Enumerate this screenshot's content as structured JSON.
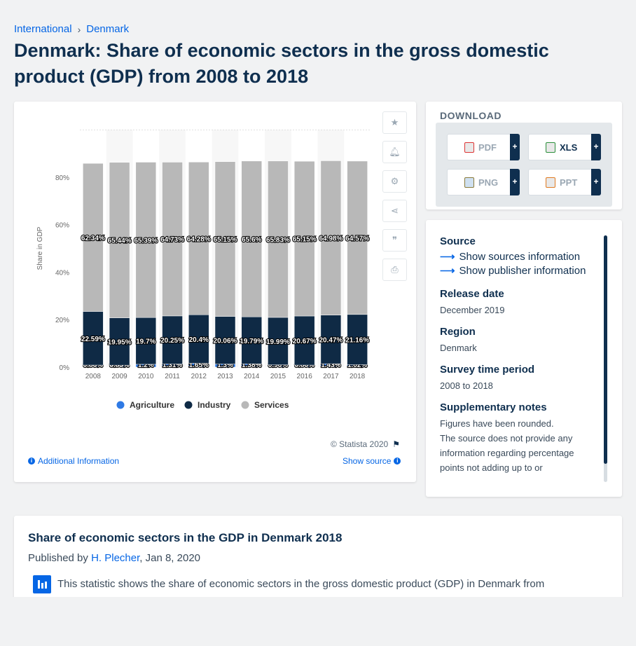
{
  "breadcrumb": {
    "item1": "International",
    "item2": "Denmark"
  },
  "title": "Denmark: Share of economic sectors in the gross domestic product (GDP) from 2008 to 2018",
  "chart_data": {
    "type": "bar",
    "stacked": true,
    "categories": [
      "2008",
      "2009",
      "2010",
      "2011",
      "2012",
      "2013",
      "2014",
      "2015",
      "2016",
      "2017",
      "2018"
    ],
    "series": [
      {
        "name": "Agriculture",
        "values": [
          0.86,
          0.83,
          1.2,
          1.31,
          1.65,
          1.3,
          1.38,
          0.96,
          0.86,
          1.43,
          1.02
        ],
        "labels": [
          "0.86%",
          "0.83%",
          "1.2%",
          "1.31%",
          "1.65%",
          "1.3%",
          "1.38%",
          "0.96%",
          "0.86%",
          "1.43%",
          "1.02%"
        ],
        "color": "#2f7ae5"
      },
      {
        "name": "Industry",
        "values": [
          22.59,
          19.95,
          19.7,
          20.25,
          20.4,
          20.06,
          19.79,
          19.99,
          20.67,
          20.47,
          21.16
        ],
        "labels": [
          "22.59%",
          "19.95%",
          "19.7%",
          "20.25%",
          "20.4%",
          "20.06%",
          "19.79%",
          "19.99%",
          "20.67%",
          "20.47%",
          "21.16%"
        ],
        "color": "#0f2a45"
      },
      {
        "name": "Services",
        "values": [
          62.34,
          65.44,
          65.39,
          64.73,
          64.28,
          65.15,
          65.6,
          65.83,
          65.15,
          64.98,
          64.57
        ],
        "labels": [
          "62.34%",
          "65.44%",
          "65.39%",
          "64.73%",
          "64.28%",
          "65.15%",
          "65.6%",
          "65.83%",
          "65.15%",
          "64.98%",
          "64.57%"
        ],
        "color": "#b8b8b8"
      }
    ],
    "ylabel": "Share in GDP",
    "yticks": [
      "0%",
      "20%",
      "40%",
      "60%",
      "80%"
    ],
    "ylim": [
      0,
      100
    ],
    "legend_position": "bottom",
    "grid": true
  },
  "chart_footer": {
    "copyright": "© Statista 2020",
    "additional_info": "Additional Information",
    "show_source": "Show source"
  },
  "download": {
    "title": "DOWNLOAD",
    "pdf": "PDF",
    "xls": "XLS",
    "png": "PNG",
    "ppt": "PPT",
    "plus": "+"
  },
  "source": {
    "heading": "Source",
    "sources_link": "Show sources information",
    "publisher_link": "Show publisher information",
    "release_label": "Release date",
    "release_value": "December 2019",
    "region_label": "Region",
    "region_value": "Denmark",
    "period_label": "Survey time period",
    "period_value": "2008 to 2018",
    "notes_label": "Supplementary notes",
    "notes_value1": "Figures have been rounded.",
    "notes_value2": "The source does not provide any information regarding percentage points not adding up to or"
  },
  "description": {
    "title": "Share of economic sectors in the GDP in Denmark 2018",
    "published_prefix": "Published by",
    "author": "H. Plecher",
    "date": ", Jan 8, 2020",
    "text": "This statistic shows the share of economic sectors in the gross domestic product (GDP) in Denmark from"
  }
}
